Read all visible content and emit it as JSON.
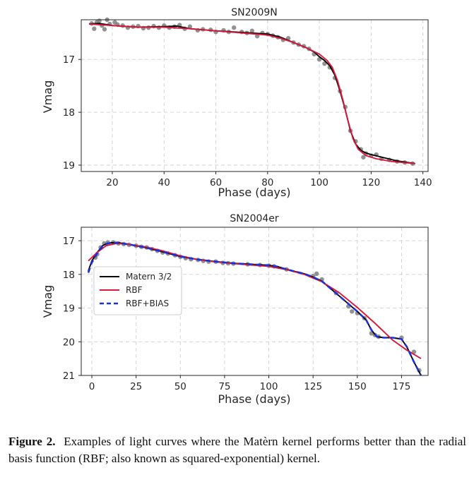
{
  "caption": {
    "label": "Figure 2.",
    "text": "Examples of light curves where the Matèrn kernel performs better than the radial basis function (RBF; also known as squared-exponential) kernel."
  },
  "colors": {
    "matern": "#000000",
    "rbf": "#d7193c",
    "rbf_bias": "#1a2fe0",
    "points": "#7f7f7f"
  },
  "chart_data": [
    {
      "type": "scatter",
      "title": "SN2009N",
      "xlabel": "Phase (days)",
      "ylabel": "Vmag",
      "xlim": [
        8,
        142
      ],
      "ylim": [
        19.12,
        16.25
      ],
      "y_inverted": true,
      "grid": true,
      "xticks": [
        20,
        40,
        60,
        80,
        100,
        120,
        140
      ],
      "yticks": [
        17,
        18,
        19
      ],
      "points": [
        [
          12,
          16.32
        ],
        [
          13,
          16.42
        ],
        [
          14,
          16.3
        ],
        [
          15,
          16.27
        ],
        [
          16,
          16.36
        ],
        [
          17,
          16.43
        ],
        [
          18,
          16.25
        ],
        [
          19,
          16.33
        ],
        [
          21,
          16.3
        ],
        [
          22,
          16.34
        ],
        [
          24,
          16.36
        ],
        [
          26,
          16.4
        ],
        [
          28,
          16.38
        ],
        [
          30,
          16.37
        ],
        [
          32,
          16.41
        ],
        [
          34,
          16.4
        ],
        [
          36,
          16.37
        ],
        [
          38,
          16.4
        ],
        [
          40,
          16.36
        ],
        [
          42,
          16.4
        ],
        [
          44,
          16.38
        ],
        [
          46,
          16.35
        ],
        [
          48,
          16.42
        ],
        [
          50,
          16.38
        ],
        [
          53,
          16.45
        ],
        [
          55,
          16.43
        ],
        [
          58,
          16.44
        ],
        [
          60,
          16.48
        ],
        [
          63,
          16.45
        ],
        [
          65,
          16.48
        ],
        [
          67,
          16.4
        ],
        [
          70,
          16.48
        ],
        [
          72,
          16.5
        ],
        [
          74,
          16.46
        ],
        [
          76,
          16.56
        ],
        [
          78,
          16.5
        ],
        [
          80,
          16.52
        ],
        [
          82,
          16.55
        ],
        [
          84,
          16.58
        ],
        [
          86,
          16.63
        ],
        [
          88,
          16.6
        ],
        [
          90,
          16.68
        ],
        [
          92,
          16.72
        ],
        [
          94,
          16.75
        ],
        [
          96,
          16.8
        ],
        [
          98,
          16.9
        ],
        [
          100,
          17.0
        ],
        [
          102,
          17.08
        ],
        [
          104,
          17.15
        ],
        [
          106,
          17.35
        ],
        [
          108,
          17.6
        ],
        [
          110,
          17.9
        ],
        [
          112,
          18.35
        ],
        [
          114,
          18.55
        ],
        [
          116,
          18.7
        ],
        [
          117,
          18.85
        ],
        [
          118,
          18.78
        ],
        [
          120,
          18.82
        ],
        [
          122,
          18.8
        ],
        [
          124,
          18.88
        ],
        [
          127,
          18.9
        ],
        [
          130,
          18.93
        ],
        [
          133,
          18.95
        ],
        [
          136,
          18.97
        ]
      ],
      "series": [
        {
          "name": "Matern 3/2",
          "x": [
            11,
            15,
            20,
            30,
            40,
            45,
            50,
            60,
            70,
            80,
            85,
            90,
            95,
            98,
            100,
            102,
            104,
            106,
            108,
            110,
            112,
            114,
            116,
            118,
            120,
            125,
            130,
            137
          ],
          "y": [
            16.33,
            16.32,
            16.36,
            16.39,
            16.38,
            16.37,
            16.42,
            16.46,
            16.49,
            16.52,
            16.58,
            16.68,
            16.78,
            16.86,
            16.95,
            17.02,
            17.12,
            17.3,
            17.6,
            17.95,
            18.35,
            18.6,
            18.72,
            18.77,
            18.8,
            18.86,
            18.92,
            18.97
          ]
        },
        {
          "name": "RBF",
          "x": [
            11,
            20,
            30,
            40,
            50,
            60,
            70,
            80,
            85,
            90,
            95,
            100,
            103,
            105,
            107,
            109,
            111,
            113,
            115,
            118,
            122,
            128,
            137
          ],
          "y": [
            16.33,
            16.36,
            16.39,
            16.39,
            16.42,
            16.46,
            16.5,
            16.54,
            16.6,
            16.68,
            16.78,
            16.9,
            17.02,
            17.15,
            17.4,
            17.75,
            18.15,
            18.5,
            18.7,
            18.82,
            18.88,
            18.93,
            18.97
          ]
        }
      ]
    },
    {
      "type": "scatter",
      "title": "SN2004er",
      "xlabel": "Phase (days)",
      "ylabel": "Vmag",
      "xlim": [
        -6,
        190
      ],
      "ylim": [
        21.0,
        16.6
      ],
      "y_inverted": true,
      "grid": true,
      "xticks": [
        0,
        25,
        50,
        75,
        100,
        125,
        150,
        175
      ],
      "yticks": [
        17,
        18,
        19,
        20,
        21
      ],
      "legend": {
        "position": "center-left",
        "entries": [
          "Matern 3/2",
          "RBF",
          "RBF+BIAS"
        ]
      },
      "points": [
        [
          2,
          17.5
        ],
        [
          3,
          17.4
        ],
        [
          5,
          17.2
        ],
        [
          7,
          17.08
        ],
        [
          9,
          17.05
        ],
        [
          12,
          17.05
        ],
        [
          15,
          17.08
        ],
        [
          18,
          17.1
        ],
        [
          21,
          17.12
        ],
        [
          25,
          17.15
        ],
        [
          28,
          17.18
        ],
        [
          31,
          17.2
        ],
        [
          34,
          17.25
        ],
        [
          37,
          17.3
        ],
        [
          40,
          17.35
        ],
        [
          43,
          17.38
        ],
        [
          47,
          17.43
        ],
        [
          50,
          17.48
        ],
        [
          53,
          17.52
        ],
        [
          56,
          17.55
        ],
        [
          60,
          17.57
        ],
        [
          63,
          17.6
        ],
        [
          66,
          17.62
        ],
        [
          70,
          17.62
        ],
        [
          74,
          17.66
        ],
        [
          77,
          17.67
        ],
        [
          80,
          17.68
        ],
        [
          88,
          17.7
        ],
        [
          95,
          17.72
        ],
        [
          100,
          17.74
        ],
        [
          103,
          17.76
        ],
        [
          110,
          17.85
        ],
        [
          125,
          18.05
        ],
        [
          127,
          17.98
        ],
        [
          130,
          18.15
        ],
        [
          138,
          18.55
        ],
        [
          145,
          18.95
        ],
        [
          147,
          19.1
        ],
        [
          150,
          19.15
        ],
        [
          154,
          19.3
        ],
        [
          158,
          19.75
        ],
        [
          160,
          19.8
        ],
        [
          162,
          19.85
        ],
        [
          175,
          19.88
        ],
        [
          182,
          20.3
        ],
        [
          185,
          20.85
        ]
      ],
      "series": [
        {
          "name": "Matern 3/2",
          "x": [
            -2,
            0,
            3,
            6,
            9,
            14,
            20,
            30,
            40,
            50,
            60,
            70,
            80,
            90,
            100,
            105,
            110,
            120,
            125,
            130,
            140,
            150,
            155,
            158,
            161,
            165,
            170,
            175,
            178,
            182,
            186
          ],
          "y": [
            17.9,
            17.6,
            17.35,
            17.15,
            17.07,
            17.05,
            17.1,
            17.2,
            17.33,
            17.47,
            17.56,
            17.62,
            17.67,
            17.7,
            17.73,
            17.77,
            17.85,
            17.98,
            18.08,
            18.2,
            18.65,
            19.1,
            19.35,
            19.65,
            19.85,
            19.88,
            19.88,
            19.92,
            20.15,
            20.6,
            21.0
          ]
        },
        {
          "name": "RBF",
          "x": [
            -2,
            3,
            8,
            14,
            20,
            30,
            40,
            50,
            60,
            70,
            80,
            90,
            100,
            110,
            120,
            130,
            140,
            150,
            160,
            170,
            178,
            186
          ],
          "y": [
            17.6,
            17.35,
            17.15,
            17.08,
            17.1,
            17.18,
            17.3,
            17.45,
            17.56,
            17.63,
            17.68,
            17.72,
            17.76,
            17.86,
            18.0,
            18.22,
            18.55,
            18.98,
            19.45,
            19.95,
            20.25,
            20.5
          ]
        },
        {
          "name": "RBF+BIAS",
          "x": [
            -2,
            0,
            3,
            6,
            9,
            14,
            20,
            30,
            40,
            50,
            60,
            70,
            80,
            90,
            100,
            105,
            110,
            120,
            125,
            130,
            140,
            150,
            155,
            158,
            161,
            165,
            170,
            175,
            178,
            182,
            186
          ],
          "y": [
            17.95,
            17.65,
            17.38,
            17.17,
            17.08,
            17.06,
            17.1,
            17.2,
            17.33,
            17.47,
            17.56,
            17.62,
            17.67,
            17.7,
            17.73,
            17.77,
            17.85,
            17.98,
            18.08,
            18.2,
            18.65,
            19.1,
            19.35,
            19.65,
            19.85,
            19.88,
            19.88,
            19.92,
            20.15,
            20.6,
            21.0
          ]
        }
      ]
    }
  ]
}
